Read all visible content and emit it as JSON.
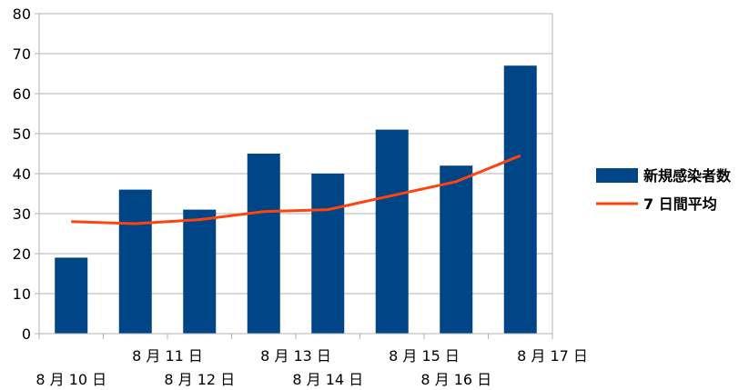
{
  "chart_data": {
    "type": "bar",
    "categories": [
      "8 月 10 日",
      "8 月 11 日",
      "8 月 12 日",
      "8 月 13 日",
      "8 月 14 日",
      "8 月 15 日",
      "8 月 16 日",
      "8 月 17 日"
    ],
    "series": [
      {
        "name": "新規感染者数",
        "type": "bar",
        "values": [
          19,
          36,
          31,
          45,
          40,
          51,
          42,
          67
        ],
        "color": "#004586"
      },
      {
        "name": "7 日間平均",
        "type": "line",
        "values": [
          28,
          27.5,
          28.5,
          30.5,
          31,
          34.5,
          38,
          44.5
        ],
        "color": "#ff420e"
      }
    ],
    "ylim": [
      0,
      80
    ],
    "yticks": [
      0,
      10,
      20,
      30,
      40,
      50,
      60,
      70,
      80
    ],
    "grid": true,
    "legend_position": "right",
    "title": "",
    "xlabel": "",
    "ylabel": ""
  }
}
